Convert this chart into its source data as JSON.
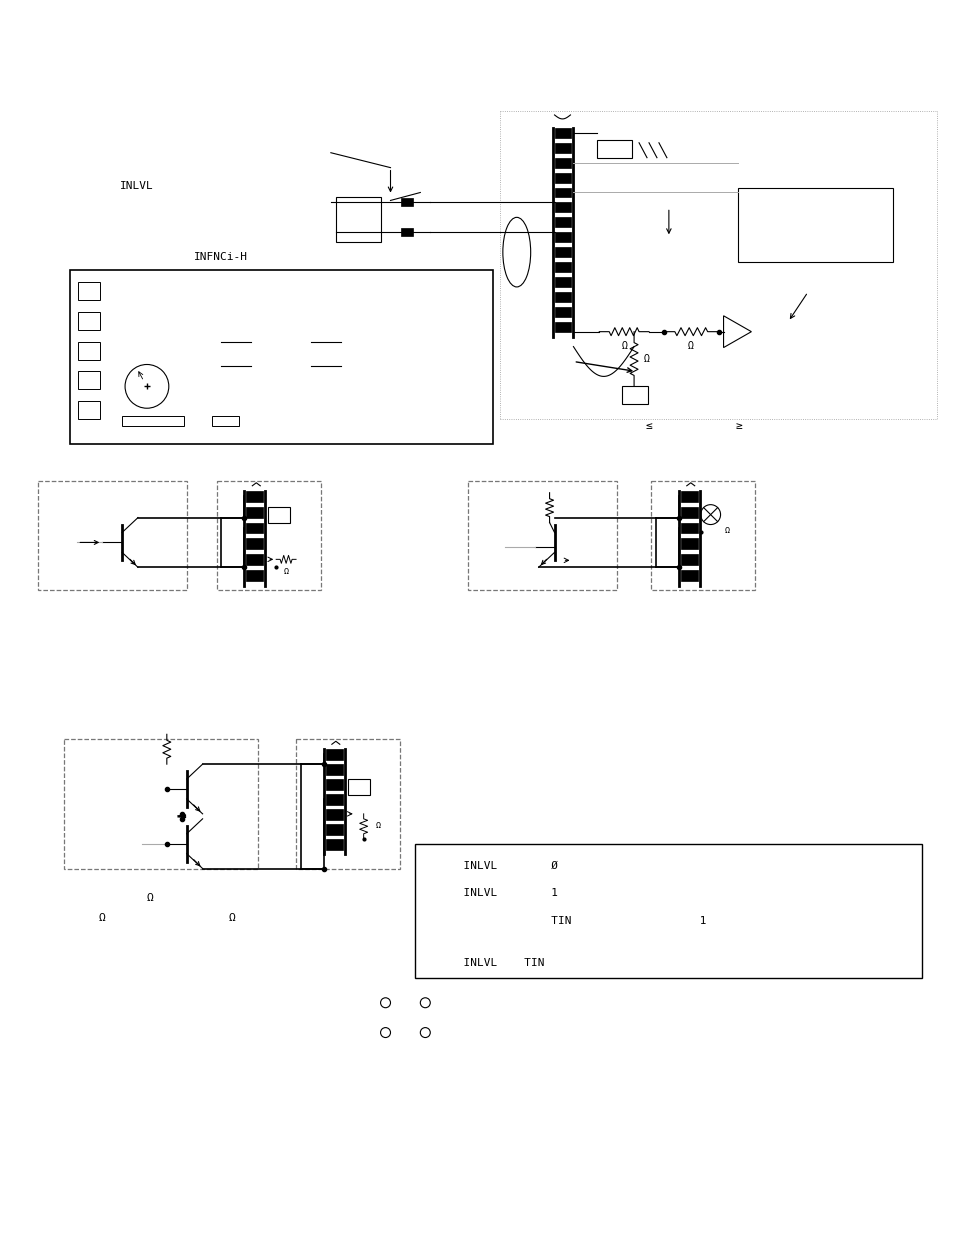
{
  "background_color": "#ffffff",
  "page_width": 9.54,
  "page_height": 12.35,
  "labels": {
    "inlvl": "INLVL",
    "infnci": "INFNCi-H",
    "leq": "≤",
    "geq": "≥"
  },
  "bottom_box_lines": [
    "  INLVL        Ø",
    "  INLVL        1",
    "               TIN                   1",
    "",
    "  INLVL    TIN"
  ],
  "omega": "Ω",
  "gray": "#aaaaaa"
}
